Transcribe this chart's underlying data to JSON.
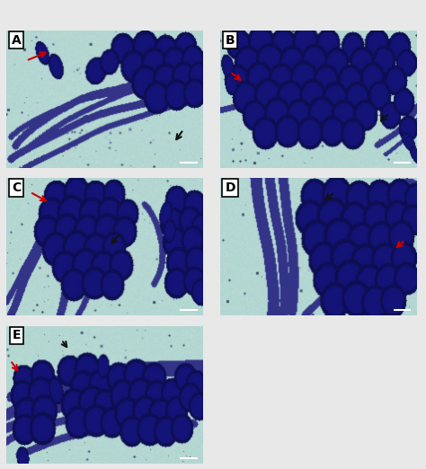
{
  "bg_color_rgb": [
    180,
    215,
    210
  ],
  "cell_color_rgb": [
    20,
    20,
    120
  ],
  "hypha_color_rgb": [
    60,
    60,
    160
  ],
  "outer_bg": "#e8e8e8",
  "border_color": "#888888",
  "red_arrow_color": "#cc0000",
  "black_arrow_color": "#111111",
  "label_fontsize": 9,
  "panels": [
    "A",
    "B",
    "C",
    "D",
    "E"
  ],
  "fig_width": 4.74,
  "fig_height": 5.22,
  "dpi": 100
}
